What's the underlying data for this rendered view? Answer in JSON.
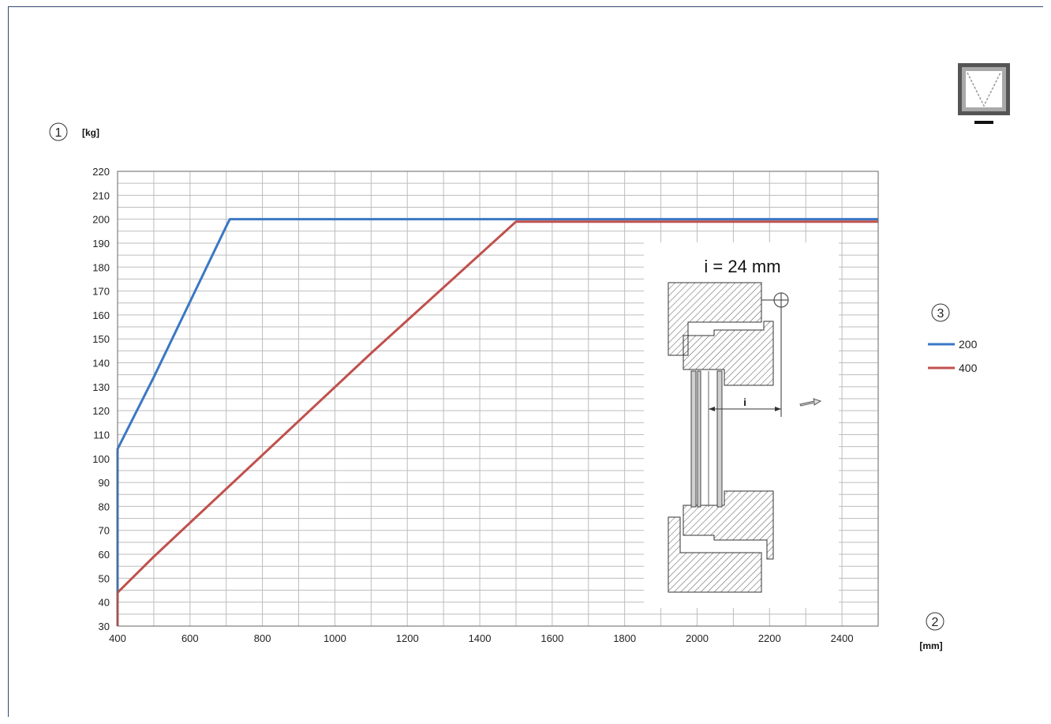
{
  "markers": {
    "y_axis": "1",
    "x_axis": "2",
    "legend": "3"
  },
  "legend": {
    "items": [
      {
        "label": "200",
        "color": "#3a78c4"
      },
      {
        "label": "400",
        "color": "#c0504d"
      }
    ],
    "placement": "right"
  },
  "inset": {
    "formula": "i = 24 mm",
    "dimension_label": "i"
  },
  "window_icon": "tilt-window-icon",
  "chart_data": {
    "type": "line",
    "title": "",
    "xlabel": "[mm]",
    "ylabel": "[kg]",
    "xlim": [
      400,
      2500
    ],
    "ylim": [
      30,
      220
    ],
    "x_ticks": [
      400,
      600,
      800,
      1000,
      1200,
      1400,
      1600,
      1800,
      2000,
      2200,
      2400
    ],
    "y_ticks": [
      30,
      40,
      50,
      60,
      70,
      80,
      90,
      100,
      110,
      120,
      130,
      140,
      150,
      160,
      170,
      180,
      190,
      200,
      210,
      220
    ],
    "grid": true,
    "series": [
      {
        "name": "200",
        "color": "#3a78c4",
        "x": [
          400,
          400,
          500,
          700,
          710,
          2500
        ],
        "y": [
          30,
          104,
          134,
          197,
          200,
          200
        ]
      },
      {
        "name": "400",
        "color": "#c0504d",
        "x": [
          400,
          400,
          500,
          1100,
          1500,
          2500
        ],
        "y": [
          30,
          44,
          59,
          144,
          199,
          199
        ]
      }
    ]
  }
}
